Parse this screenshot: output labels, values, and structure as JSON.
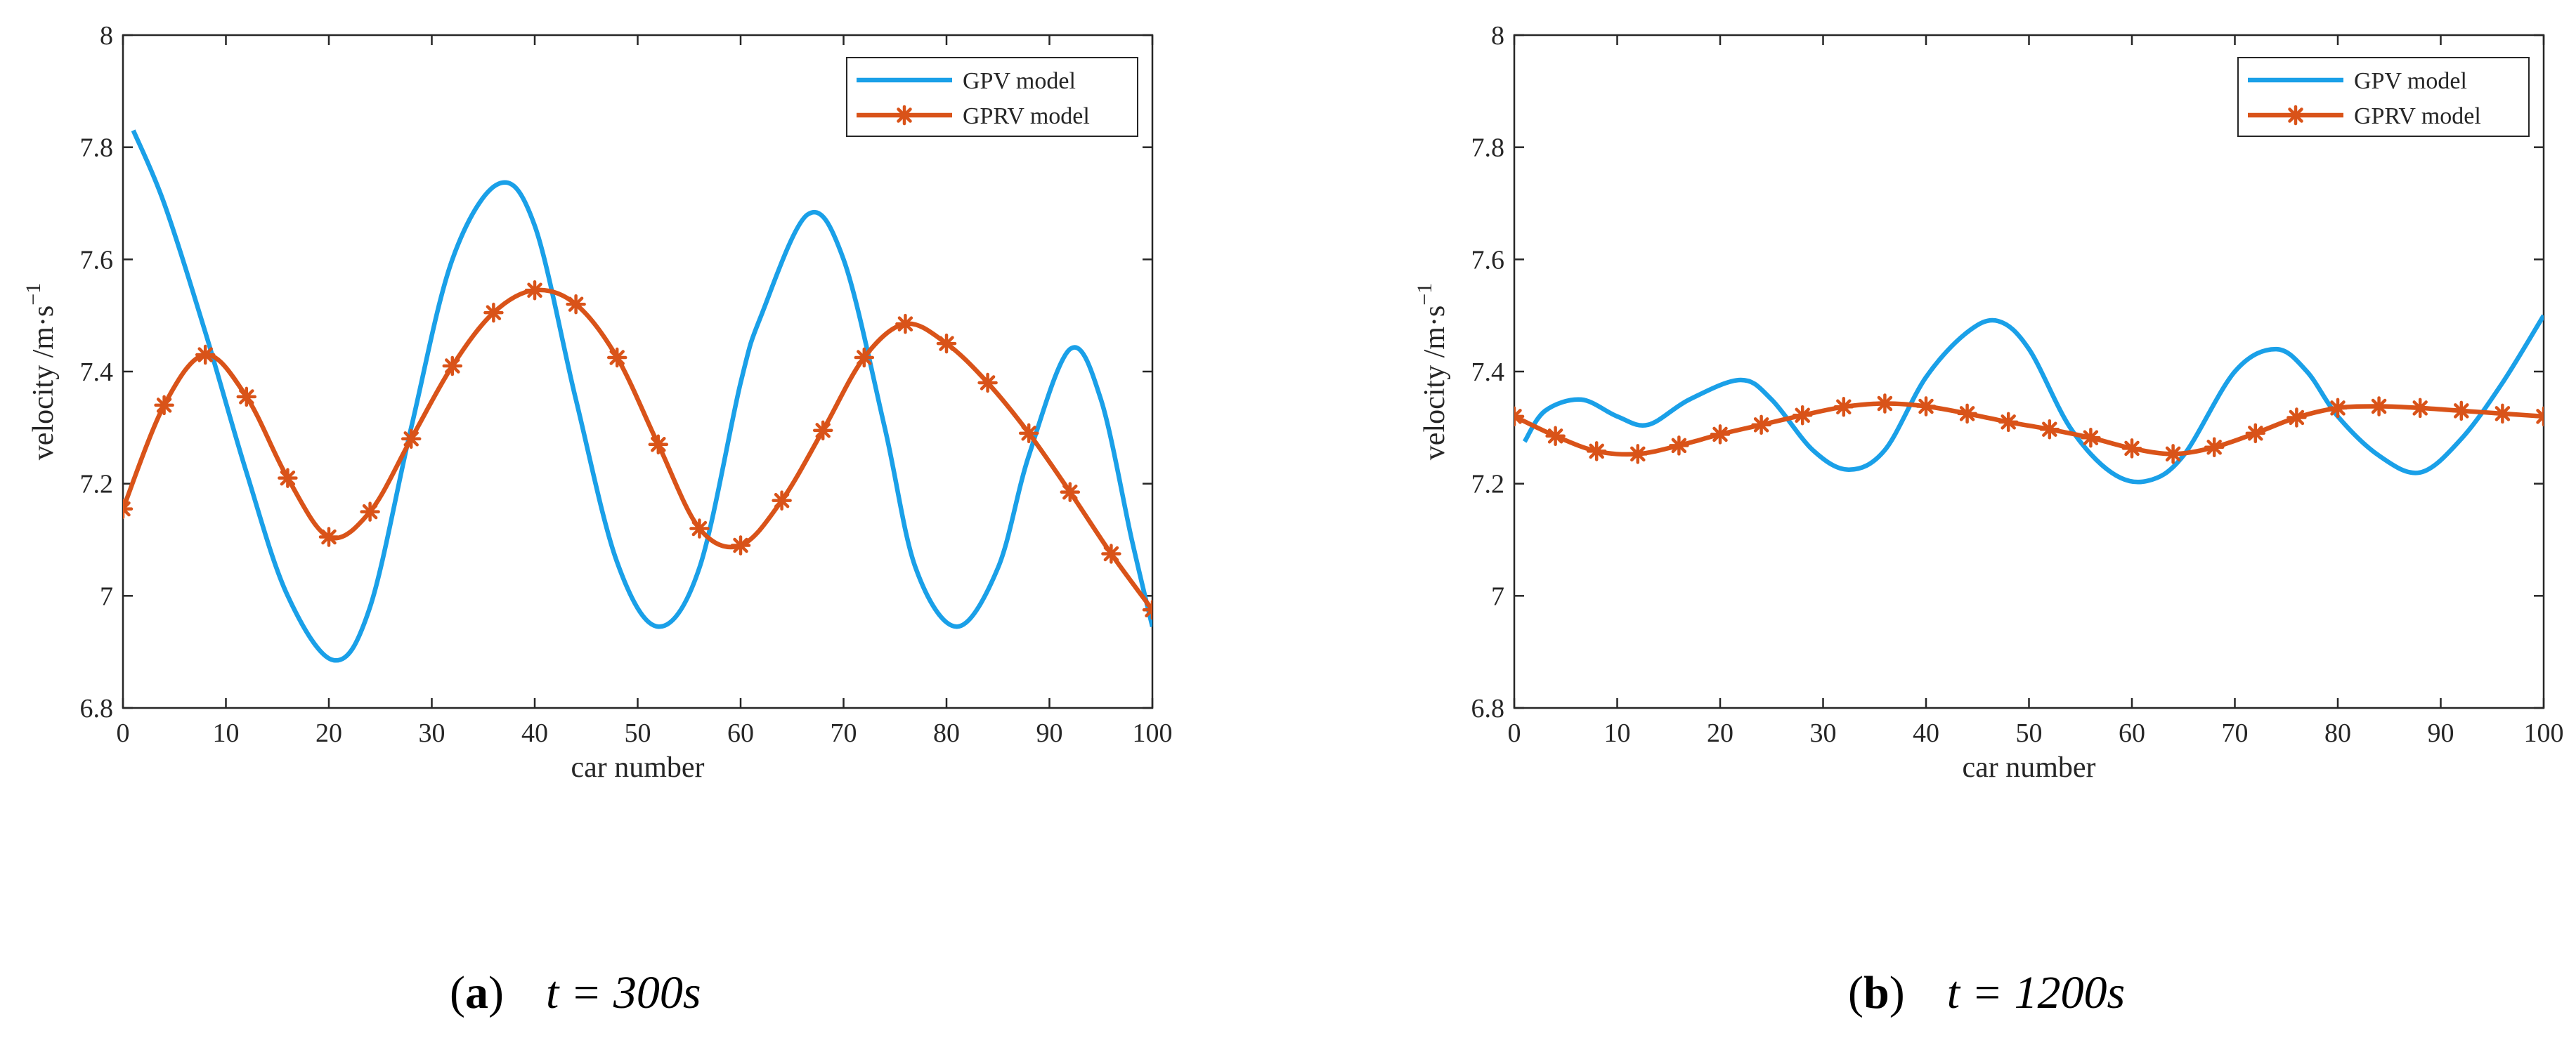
{
  "chart_data": [
    {
      "type": "line",
      "panel": "(a)",
      "caption_label": "a",
      "caption_time": "t = 300s",
      "xlabel": "car number",
      "ylabel": "velocity /m·s",
      "ylabel_sup": "−1",
      "xlim": [
        0,
        100
      ],
      "ylim": [
        6.8,
        8
      ],
      "x_ticks": [
        "0",
        "10",
        "20",
        "30",
        "40",
        "50",
        "60",
        "70",
        "80",
        "90",
        "100"
      ],
      "y_ticks": [
        "6.8",
        "7",
        "7.2",
        "7.4",
        "7.6",
        "7.8",
        "8"
      ],
      "legend": [
        "GPV model",
        "GPRV model"
      ],
      "legend_position": "top-right",
      "series": [
        {
          "name": "GPV model",
          "color": "#1aa0e8",
          "marker": "none",
          "x": [
            1,
            4,
            8,
            12,
            16,
            20.5,
            24,
            28,
            32,
            36.5,
            40,
            44,
            48,
            52,
            56,
            60,
            62,
            66.5,
            70,
            74,
            77,
            81,
            85,
            88,
            92,
            95,
            98,
            100
          ],
          "values": [
            7.83,
            7.7,
            7.47,
            7.22,
            7.0,
            6.885,
            6.98,
            7.3,
            7.6,
            7.735,
            7.66,
            7.35,
            7.06,
            6.945,
            7.05,
            7.38,
            7.5,
            7.68,
            7.6,
            7.3,
            7.05,
            6.945,
            7.05,
            7.25,
            7.44,
            7.35,
            7.1,
            6.945
          ]
        },
        {
          "name": "GPRV model",
          "color": "#d95319",
          "marker": "asterisk",
          "x": [
            0,
            4,
            8,
            12,
            16,
            20,
            24,
            28,
            32,
            36,
            40,
            44,
            48,
            52,
            56,
            60,
            64,
            68,
            72,
            76,
            80,
            84,
            88,
            92,
            96,
            100
          ],
          "values": [
            7.155,
            7.34,
            7.43,
            7.355,
            7.21,
            7.105,
            7.15,
            7.28,
            7.41,
            7.505,
            7.545,
            7.52,
            7.425,
            7.27,
            7.12,
            7.09,
            7.17,
            7.295,
            7.425,
            7.485,
            7.45,
            7.38,
            7.29,
            7.185,
            7.075,
            6.975
          ]
        }
      ]
    },
    {
      "type": "line",
      "panel": "(b)",
      "caption_label": "b",
      "caption_time": "t = 1200s",
      "xlabel": "car number",
      "ylabel": "velocity /m·s",
      "ylabel_sup": "−1",
      "xlim": [
        0,
        100
      ],
      "ylim": [
        6.8,
        8
      ],
      "x_ticks": [
        "0",
        "10",
        "20",
        "30",
        "40",
        "50",
        "60",
        "70",
        "80",
        "90",
        "100"
      ],
      "y_ticks": [
        "6.8",
        "7",
        "7.2",
        "7.4",
        "7.6",
        "7.8",
        "8"
      ],
      "legend": [
        "GPV model",
        "GPRV model"
      ],
      "legend_position": "top-right",
      "series": [
        {
          "name": "GPV model",
          "color": "#1aa0e8",
          "marker": "none",
          "x": [
            1,
            3,
            6.5,
            10,
            13,
            17,
            22,
            25,
            29,
            32.5,
            36,
            40,
            44,
            47,
            50,
            54,
            58,
            61.5,
            65,
            70,
            74,
            77,
            80,
            84,
            88,
            92,
            96,
            100
          ],
          "values": [
            7.275,
            7.33,
            7.35,
            7.32,
            7.305,
            7.35,
            7.385,
            7.35,
            7.26,
            7.225,
            7.26,
            7.39,
            7.47,
            7.49,
            7.44,
            7.3,
            7.22,
            7.205,
            7.25,
            7.4,
            7.44,
            7.4,
            7.32,
            7.25,
            7.22,
            7.28,
            7.38,
            7.5
          ]
        },
        {
          "name": "GPRV model",
          "color": "#d95319",
          "marker": "asterisk",
          "x": [
            0,
            4,
            8,
            12,
            16,
            20,
            24,
            28,
            32,
            36,
            40,
            44,
            48,
            52,
            56,
            60,
            64,
            68,
            72,
            76,
            80,
            84,
            88,
            92,
            96,
            100
          ],
          "values": [
            7.32,
            7.285,
            7.258,
            7.253,
            7.268,
            7.288,
            7.305,
            7.322,
            7.337,
            7.343,
            7.338,
            7.325,
            7.31,
            7.297,
            7.282,
            7.263,
            7.253,
            7.265,
            7.29,
            7.318,
            7.335,
            7.338,
            7.335,
            7.33,
            7.325,
            7.32
          ]
        }
      ]
    }
  ]
}
